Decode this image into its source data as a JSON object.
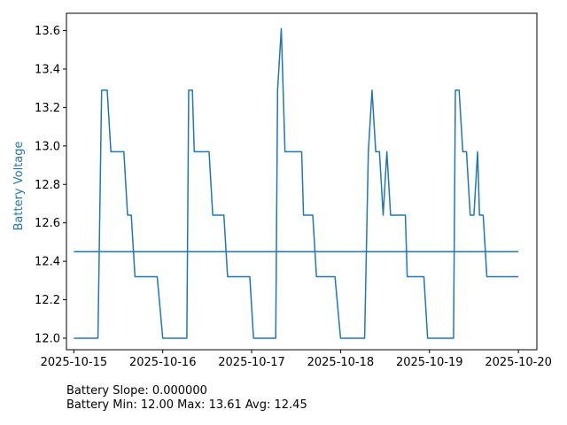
{
  "chart_data": {
    "type": "line",
    "title": "",
    "xlabel": "",
    "ylabel": "Battery Voltage",
    "ylabel_color": "#1f77b4",
    "line_color": "#1f77b4",
    "grid": false,
    "xlim": [
      "2025-10-14 22:00",
      "2025-10-20 05:00"
    ],
    "ylim": [
      11.94,
      13.69
    ],
    "xticks": [
      "2025-10-15",
      "2025-10-16",
      "2025-10-17",
      "2025-10-18",
      "2025-10-19",
      "2025-10-20"
    ],
    "yticks": [
      "12.0",
      "12.2",
      "12.4",
      "12.6",
      "12.8",
      "13.0",
      "13.2",
      "13.4",
      "13.6"
    ],
    "series": [
      {
        "x": [
          "2025-10-15 00:00",
          "2025-10-15 06:30",
          "2025-10-15 07:30",
          "2025-10-15 09:00",
          "2025-10-15 10:00",
          "2025-10-15 13:30",
          "2025-10-15 14:30",
          "2025-10-15 15:30",
          "2025-10-15 16:30",
          "2025-10-15 22:30",
          "2025-10-16 00:00",
          "2025-10-16 06:30",
          "2025-10-16 07:00",
          "2025-10-16 08:00",
          "2025-10-16 08:30",
          "2025-10-16 12:30",
          "2025-10-16 13:30",
          "2025-10-16 16:30",
          "2025-10-16 17:30",
          "2025-10-16 23:30",
          "2025-10-17 00:30",
          "2025-10-17 06:30",
          "2025-10-17 07:00",
          "2025-10-17 08:00",
          "2025-10-17 09:00",
          "2025-10-17 13:30",
          "2025-10-17 14:00",
          "2025-10-17 16:30",
          "2025-10-17 17:30",
          "2025-10-17 22:30",
          "2025-10-18 00:00",
          "2025-10-18 06:30",
          "2025-10-18 07:30",
          "2025-10-18 08:30",
          "2025-10-18 09:30",
          "2025-10-18 10:30",
          "2025-10-18 11:30",
          "2025-10-18 12:30",
          "2025-10-18 13:30",
          "2025-10-18 17:30",
          "2025-10-18 18:00",
          "2025-10-18 22:30",
          "2025-10-18 23:30",
          "2025-10-19 06:30",
          "2025-10-19 07:00",
          "2025-10-19 08:00",
          "2025-10-19 09:00",
          "2025-10-19 10:00",
          "2025-10-19 11:00",
          "2025-10-19 12:00",
          "2025-10-19 13:00",
          "2025-10-19 13:30",
          "2025-10-19 14:30",
          "2025-10-19 15:30",
          "2025-10-19 23:59"
        ],
        "y": [
          12.0,
          12.0,
          13.29,
          13.29,
          12.97,
          12.97,
          12.64,
          12.64,
          12.32,
          12.32,
          12.0,
          12.0,
          13.29,
          13.29,
          12.97,
          12.97,
          12.64,
          12.64,
          12.32,
          12.32,
          12.0,
          12.0,
          13.29,
          13.61,
          12.97,
          12.97,
          12.64,
          12.64,
          12.32,
          12.32,
          12.0,
          12.0,
          12.97,
          13.29,
          12.97,
          12.97,
          12.64,
          12.97,
          12.64,
          12.64,
          12.32,
          12.32,
          12.0,
          12.0,
          13.29,
          13.29,
          12.97,
          12.97,
          12.64,
          12.64,
          12.97,
          12.64,
          12.64,
          12.32,
          12.32
        ]
      },
      {
        "x": [
          "2025-10-15 00:00",
          "2025-10-19 23:59"
        ],
        "y": [
          12.45,
          12.45
        ]
      }
    ]
  },
  "footer": {
    "line1": "Battery Slope: 0.000000",
    "line2": "Battery Min: 12.00 Max: 13.61 Avg: 12.45"
  }
}
